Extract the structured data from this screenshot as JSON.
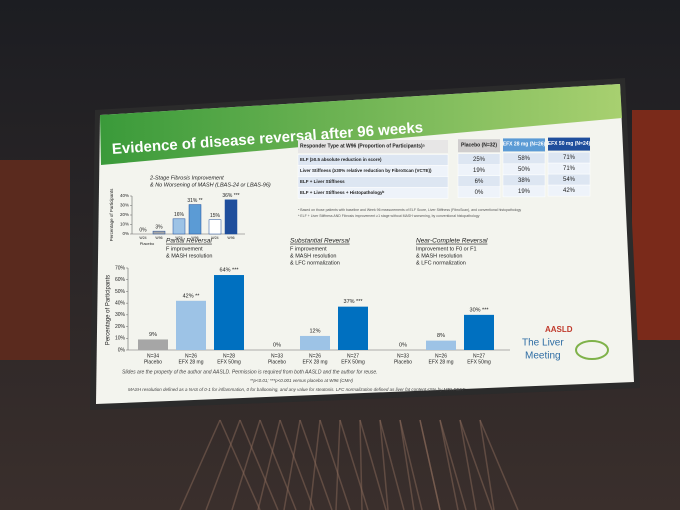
{
  "slide": {
    "title": "Evidence of disease reversal after 96 weeks",
    "top_chart": {
      "title": [
        "2-Stage Fibrosis Improvement",
        "& No Worsening of MASH (LBAS-24 or LBAS-96)"
      ],
      "y_label": "Percentage of Participants",
      "ylim": [
        0,
        40
      ],
      "yticks": [
        {
          "value": 0,
          "label": "0%"
        },
        {
          "value": 10,
          "label": "10%"
        },
        {
          "value": 20,
          "label": "20%"
        },
        {
          "value": 30,
          "label": "30%"
        },
        {
          "value": 40,
          "label": "40%"
        }
      ],
      "categories": [
        "W24",
        "W96",
        "W24",
        "W96",
        "W24",
        "W96"
      ],
      "values": [
        0,
        3,
        16,
        31,
        15,
        36
      ],
      "value_labels": [
        "0%",
        "3%",
        "16%",
        "31% **",
        "15%",
        "36% ***"
      ],
      "colors": [
        "#d9d9d9",
        "#a6a6a6",
        "#9dc3e6",
        "#5b9bd5",
        "#ffffff",
        "#1f4e9c"
      ],
      "group_label": "Placebo"
    },
    "table": {
      "header": [
        "Responder Type at W96 (Proportion of Participants)ᵃ",
        "Placebo (N=32)",
        "EFX 28 mg (N=26)",
        "EFX 50 mg (N=24)"
      ],
      "rows": [
        [
          "ELF (≥0.5 absolute reduction in score)",
          "25%",
          "58%",
          "71%"
        ],
        [
          "Liver Stiffness (≥30% relative reduction by FibroScan (VCTE))",
          "19%",
          "50%",
          "71%"
        ],
        [
          "ELF + Liver Stiffness",
          "6%",
          "38%",
          "54%"
        ],
        [
          "ELF + Liver Stiffness + Histopathologyᵇ",
          "0%",
          "19%",
          "42%"
        ]
      ],
      "footnotes": [
        "ᵃ Based on those patients with baseline and Week 96 measurements of ELF Score, Liver Stiffness (FibroScan), and conventional histopathology",
        "ᵇ ELF + Liver Stiffness AND Fibrosis improvement ≥1 stage without MASH worsening, by conventional histopathology"
      ]
    },
    "bottom_chart": {
      "y_label": "Percentage of Participants",
      "ylim": [
        0,
        70
      ],
      "yticks": [
        {
          "value": 0,
          "label": "0%"
        },
        {
          "value": 10,
          "label": "10%"
        },
        {
          "value": 20,
          "label": "20%"
        },
        {
          "value": 30,
          "label": "30%"
        },
        {
          "value": 40,
          "label": "40%"
        },
        {
          "value": 50,
          "label": "50%"
        },
        {
          "value": 60,
          "label": "60%"
        },
        {
          "value": 70,
          "label": "70%"
        }
      ],
      "colors": [
        "#a6a6a6",
        "#9dc3e6",
        "#0070c0"
      ],
      "panels": [
        {
          "title": "Partial Reversal",
          "subtitle": [
            "F improvement",
            "& MASH resolution"
          ],
          "n": [
            "N=34",
            "N=26",
            "N=28"
          ],
          "arms": [
            "Placebo",
            "EFX 28 mg",
            "EFX 50mg"
          ],
          "values": [
            9,
            42,
            64
          ],
          "value_labels": [
            "9%",
            "42% **",
            "64% ***"
          ]
        },
        {
          "title": "Substantial Reversal",
          "subtitle": [
            "F improvement",
            "& MASH resolution",
            "& LFC normalization"
          ],
          "n": [
            "N=33",
            "N=26",
            "N=27"
          ],
          "arms": [
            "Placebo",
            "EFX 28 mg",
            "EFX 50mg"
          ],
          "values": [
            0,
            12,
            37
          ],
          "value_labels": [
            "0%",
            "12%",
            "37% ***"
          ]
        },
        {
          "title": "Near-Complete Reversal",
          "subtitle": [
            "Improvement to F0 or F1",
            "& MASH resolution",
            "& LFC normalization"
          ],
          "n": [
            "N=33",
            "N=26",
            "N=27"
          ],
          "arms": [
            "Placebo",
            "EFX 28 mg",
            "EFX 50mg"
          ],
          "values": [
            0,
            8,
            30
          ],
          "value_labels": [
            "0%",
            "8%",
            "30% ***"
          ]
        }
      ]
    },
    "logo": [
      "AASLD",
      "The Liver",
      "Meeting"
    ],
    "footer": [
      "Slides are the property of the author and AASLD. Permission is required from both AASLD and the author for reuse.",
      "**p<0.01; ***p<0.001 versus placebo at W96 (CMH)",
      "MASH resolution defined as a NAS of 0-1 for inflammation, 0 for ballooning, and any value for steatosis. LFC normalization defined as liver fat content ≤5% by MRI-PDFF"
    ]
  }
}
